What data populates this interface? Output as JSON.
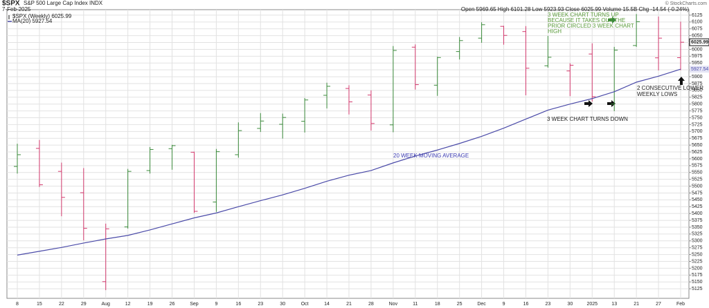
{
  "chart_data": {
    "type": "ohlc",
    "symbol": "$SPX",
    "description": "S&P 500 Large Cap Index INDX",
    "date": "7-Feb-2025",
    "quote": "Open 5969.65  High 6101.28  Low 5923.93  Close 6025.99  Volume 15.5B  Chg -14.54 (-0.24%)",
    "copyright": "© StockCharts.com",
    "categories": [
      "8",
      "15",
      "22",
      "29",
      "Aug",
      "12",
      "19",
      "26",
      "Sep",
      "9",
      "16",
      "23",
      "30",
      "Oct",
      "14",
      "21",
      "28",
      "Nov",
      "11",
      "18",
      "25",
      "Dec",
      "9",
      "16",
      "23",
      "30",
      "2025",
      "13",
      "21",
      "27",
      "Feb"
    ],
    "series": [
      {
        "name": "$SPX (Weekly) 6025.99",
        "up_color": "#3a8a3a",
        "down_color": "#d2386c",
        "last_label": "6025.99",
        "open": [
          5572,
          5638,
          5554,
          5476,
          5151,
          5351,
          5557,
          5637,
          5624,
          5442,
          5615,
          5711,
          5726,
          5737,
          5832,
          5857,
          5833,
          5724,
          6008,
          5869,
          5992,
          6041,
          6084,
          6065,
          5940,
          5921,
          5983,
          5800,
          6014,
          5969,
          5969.65
        ],
        "high": [
          5655,
          5669,
          5586,
          5566,
          5363,
          5563,
          5643,
          5651,
          5626,
          5636,
          5733,
          5767,
          5765,
          5822,
          5878,
          5869,
          5850,
          6012,
          6018,
          5973,
          6045,
          6099,
          6086,
          6085,
          6049,
          5949,
          6022,
          6009,
          6129,
          6120,
          6101.28
        ],
        "low": [
          5546,
          5497,
          5390,
          5302,
          5120,
          5345,
          5546,
          5560,
          5402,
          5406,
          5604,
          5698,
          5674,
          5696,
          5784,
          5762,
          5703,
          5697,
          5853,
          5830,
          5963,
          6024,
          6017,
          5832,
          5933,
          5829,
          5809,
          5774,
          6009,
          5923,
          5923.93
        ],
        "close": [
          5615,
          5505,
          5459,
          5346,
          5344,
          5554,
          5634,
          5648,
          5408,
          5626,
          5703,
          5738,
          5751,
          5815,
          5865,
          5808,
          5729,
          5996,
          5871,
          5970,
          6032,
          6090,
          6051,
          5931,
          5971,
          5942,
          5827,
          5997,
          6101,
          6041,
          6025.99
        ]
      },
      {
        "name": "MA(20) 5927.54",
        "color": "#4a4aa8",
        "last_label": "5927.54",
        "values": [
          5248,
          5262,
          5276,
          5292,
          5307,
          5320,
          5340,
          5362,
          5384,
          5402,
          5425,
          5447,
          5468,
          5492,
          5518,
          5540,
          5557,
          5585,
          5610,
          5632,
          5656,
          5682,
          5712,
          5745,
          5778,
          5800,
          5820,
          5845,
          5880,
          5902,
          5927.54
        ]
      }
    ],
    "ylim": [
      5090,
      6145
    ],
    "yticks": [
      5125,
      5150,
      5175,
      5200,
      5225,
      5250,
      5275,
      5300,
      5325,
      5350,
      5375,
      5400,
      5425,
      5450,
      5475,
      5500,
      5525,
      5550,
      5575,
      5600,
      5625,
      5650,
      5675,
      5700,
      5725,
      5750,
      5775,
      5800,
      5825,
      5850,
      5875,
      5900,
      5925,
      5950,
      5975,
      6000,
      6025,
      6050,
      6075,
      6100,
      6125
    ],
    "grid": true,
    "annotations": {
      "turns_up": [
        "3 WEEK CHART TURNS UP",
        "BECAUSE IT TAKES OUT THE",
        "PRIOR CIRCLED 3 WEEK CHART",
        "HIGH"
      ],
      "turns_down": "3 WEEK CHART TURNS DOWN",
      "lower_lows": [
        "2 CONSECUTIVE LOWER",
        "WEEKLY LOWS"
      ],
      "ma_note": "20 WEEK MOVING AVERAGE"
    }
  }
}
